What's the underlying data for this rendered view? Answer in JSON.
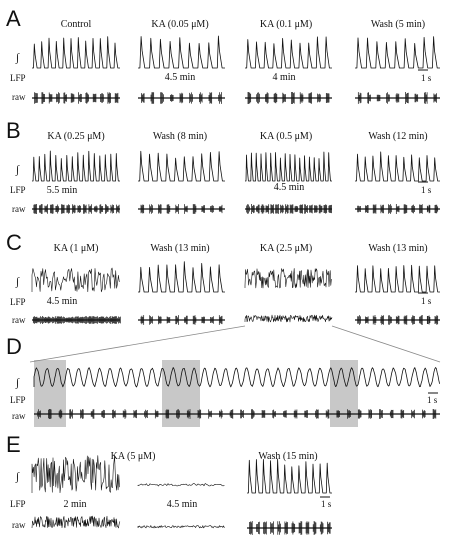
{
  "figure": {
    "row_labels": {
      "integrated": "∫",
      "lfp": "LFP",
      "raw": "raw"
    },
    "scale_bar": "1 s",
    "colors": {
      "trace": "#111111",
      "shade": "#c8c8c8",
      "connector": "#888888"
    }
  },
  "panels": {
    "A": {
      "letter": "A",
      "conditions": [
        {
          "label": "Control",
          "time": ""
        },
        {
          "label": "KA (0.05 μM)",
          "time": "4.5 min"
        },
        {
          "label": "KA (0.1 μM)",
          "time": "4 min"
        },
        {
          "label": "Wash (5 min)",
          "time": ""
        }
      ]
    },
    "B": {
      "letter": "B",
      "conditions": [
        {
          "label": "KA (0.25 μM)",
          "time": "5.5 min"
        },
        {
          "label": "Wash (8 min)",
          "time": ""
        },
        {
          "label": "KA (0.5 μM)",
          "time": "4.5 min"
        },
        {
          "label": "Wash (12 min)",
          "time": ""
        }
      ]
    },
    "C": {
      "letter": "C",
      "conditions": [
        {
          "label": "KA (1 μM)",
          "time": "4.5 min"
        },
        {
          "label": "Wash (13 min)",
          "time": ""
        },
        {
          "label": "KA (2.5 μM)",
          "time": ""
        },
        {
          "label": "Wash (13 min)",
          "time": ""
        }
      ]
    },
    "D": {
      "letter": "D"
    },
    "E": {
      "letter": "E",
      "conditions": [
        {
          "label": "",
          "time": "2 min"
        },
        {
          "label": "KA (5 μM)",
          "time": "4.5 min"
        },
        {
          "label": "Wash (15 min)",
          "time": ""
        }
      ]
    }
  }
}
